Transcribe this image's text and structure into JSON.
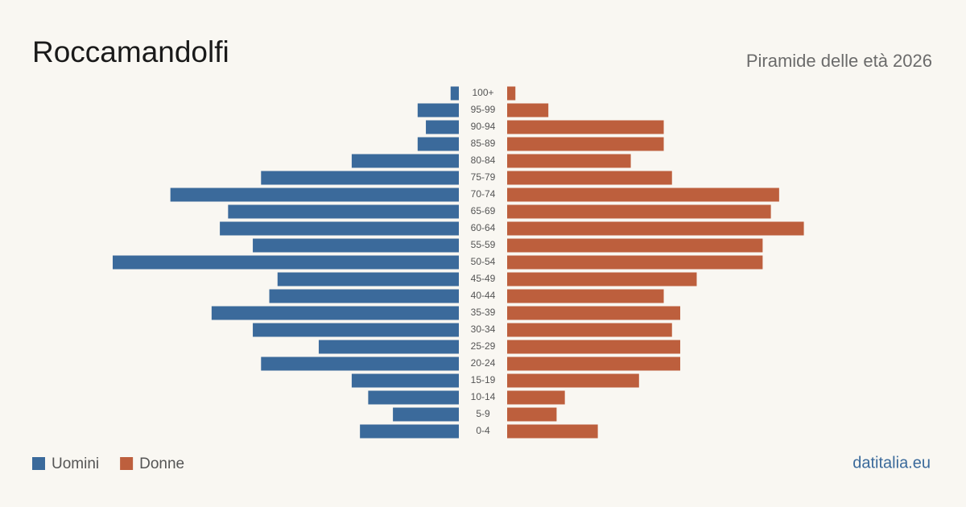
{
  "chart_data": {
    "type": "pyramid",
    "title": "Roccamandolfi",
    "subtitle": "Piramide delle età 2026",
    "source": "datitalia.eu",
    "categories": [
      "100+",
      "95-99",
      "90-94",
      "85-89",
      "80-84",
      "75-79",
      "70-74",
      "65-69",
      "60-64",
      "55-59",
      "50-54",
      "45-49",
      "40-44",
      "35-39",
      "30-34",
      "25-29",
      "20-24",
      "15-19",
      "10-14",
      "5-9",
      "0-4"
    ],
    "series": [
      {
        "name": "Uomini",
        "color": "#3b6a9b",
        "values": [
          1,
          5,
          4,
          5,
          13,
          24,
          35,
          28,
          29,
          25,
          42,
          22,
          23,
          30,
          25,
          17,
          24,
          13,
          11,
          8,
          12
        ]
      },
      {
        "name": "Donne",
        "color": "#bd5f3d",
        "values": [
          1,
          5,
          19,
          19,
          15,
          20,
          33,
          32,
          36,
          31,
          31,
          23,
          19,
          21,
          20,
          21,
          21,
          16,
          7,
          6,
          11
        ]
      }
    ]
  }
}
